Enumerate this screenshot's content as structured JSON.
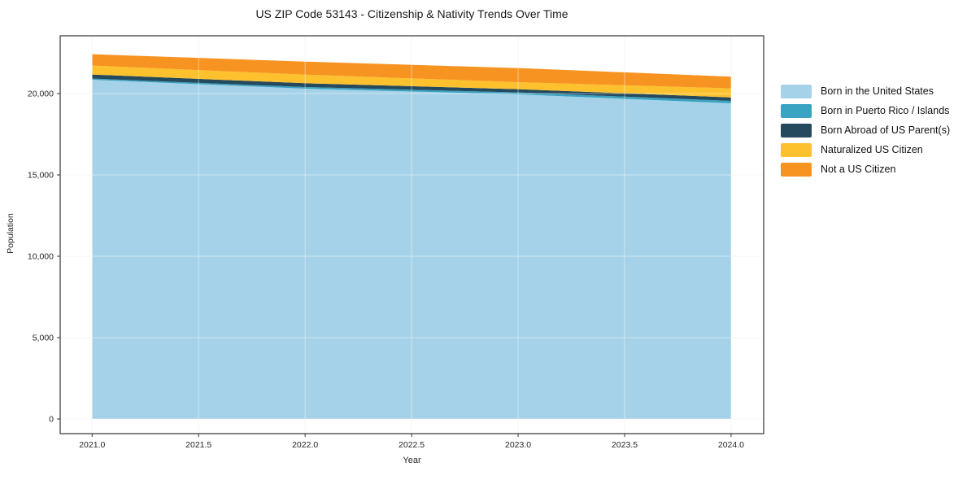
{
  "title": "US ZIP Code 53143 - Citizenship & Nativity Trends Over Time",
  "chart_data": {
    "type": "area",
    "stacked": true,
    "title": "US ZIP Code 53143 - Citizenship & Nativity Trends Over Time",
    "xlabel": "Year",
    "ylabel": "Population",
    "x": [
      2021,
      2022,
      2023,
      2024
    ],
    "series": [
      {
        "name": "Born in the United States",
        "color": "#a5d2e8",
        "values": [
          20850,
          20300,
          19950,
          19400
        ]
      },
      {
        "name": "Born in Puerto Rico / Islands",
        "color": "#3aa3c2",
        "values": [
          70,
          100,
          120,
          150
        ]
      },
      {
        "name": "Born Abroad of US Parent(s)",
        "color": "#254a5e",
        "values": [
          250,
          235,
          200,
          215
        ]
      },
      {
        "name": "Naturalized US Citizen",
        "color": "#fcc12d",
        "values": [
          550,
          530,
          430,
          550
        ]
      },
      {
        "name": "Not a US Citizen",
        "color": "#f79421",
        "values": [
          700,
          800,
          870,
          725
        ]
      }
    ],
    "stack_totals": [
      22420,
      21965,
      21570,
      21040
    ],
    "x_tick_labels": [
      "2021.0",
      "2021.5",
      "2022.0",
      "2022.5",
      "2023.0",
      "2023.5",
      "2024.0"
    ],
    "x_tick_values": [
      2021.0,
      2021.5,
      2022.0,
      2022.5,
      2023.0,
      2023.5,
      2024.0
    ],
    "y_tick_labels": [
      "0",
      "5,000",
      "10,000",
      "15,000",
      "20,000"
    ],
    "y_tick_values": [
      0,
      5000,
      10000,
      15000,
      20000
    ],
    "xlim": [
      2020.85,
      2024.153
    ],
    "ylim": [
      -900,
      23550
    ],
    "grid": true,
    "legend_position": "right",
    "axes_border_color": "#333333",
    "grid_color_under": "#f0f0f0",
    "grid_color_over": "rgba(255,255,255,0.45)",
    "tick_label_color": "#262626"
  }
}
